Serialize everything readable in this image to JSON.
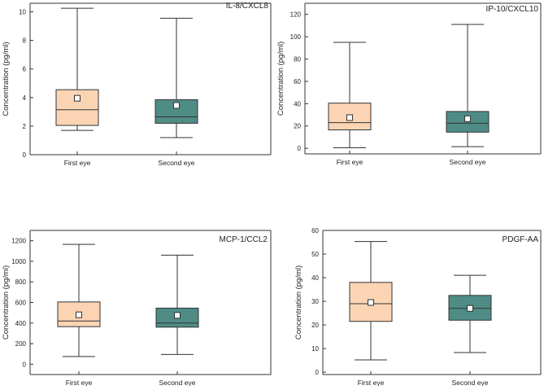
{
  "chart_data": [
    {
      "type": "box",
      "title": "IL-8/CXCL8",
      "ylabel": "Concentration (pg/ml)",
      "xlabel": "",
      "ylim": [
        0,
        10.6
      ],
      "yticks": [
        0,
        2,
        4,
        6,
        8,
        10
      ],
      "categories": [
        "First eye",
        "Second eye"
      ],
      "boxes": [
        {
          "min": 1.7,
          "q1": 2.05,
          "median": 3.15,
          "q3": 4.55,
          "max": 10.25,
          "mean": 3.95,
          "color": "#fbd4b4"
        },
        {
          "min": 1.2,
          "q1": 2.2,
          "median": 2.65,
          "q3": 3.85,
          "max": 9.55,
          "mean": 3.45,
          "color": "#4f8c86"
        }
      ]
    },
    {
      "type": "box",
      "title": "IP-10/CXCL10",
      "ylabel": "Concentration (pg/ml)",
      "xlabel": "",
      "ylim": [
        -5,
        130
      ],
      "yticks": [
        0,
        20,
        40,
        60,
        80,
        100,
        120
      ],
      "categories": [
        "First eye",
        "Second eye"
      ],
      "boxes": [
        {
          "min": 0.5,
          "q1": 16.5,
          "median": 23,
          "q3": 40.5,
          "max": 95,
          "mean": 27.5,
          "color": "#fbd4b4"
        },
        {
          "min": 1.5,
          "q1": 14.5,
          "median": 22.5,
          "q3": 33,
          "max": 111,
          "mean": 26.5,
          "color": "#4f8c86"
        }
      ]
    },
    {
      "type": "box",
      "title": "MCP-1/CCL2",
      "ylabel": "Concentration (pg/ml)",
      "xlabel": "",
      "ylim": [
        -100,
        1300
      ],
      "yticks": [
        0,
        200,
        400,
        600,
        800,
        1000,
        1200
      ],
      "categories": [
        "First eye",
        "Second eye"
      ],
      "boxes": [
        {
          "min": 75,
          "q1": 365,
          "median": 420,
          "q3": 605,
          "max": 1165,
          "mean": 480,
          "color": "#fbd4b4"
        },
        {
          "min": 95,
          "q1": 360,
          "median": 400,
          "q3": 545,
          "max": 1060,
          "mean": 475,
          "color": "#4f8c86"
        }
      ]
    },
    {
      "type": "box",
      "title": "PDGF-AA",
      "ylabel": "Concentration (pg/ml)",
      "xlabel": "",
      "ylim": [
        -1,
        60
      ],
      "yticks": [
        0,
        10,
        20,
        30,
        40,
        50,
        60
      ],
      "categories": [
        "First eye",
        "Second eye"
      ],
      "boxes": [
        {
          "min": 5.2,
          "q1": 21.5,
          "median": 29,
          "q3": 38,
          "max": 55.3,
          "mean": 29.5,
          "color": "#fbd4b4"
        },
        {
          "min": 8.3,
          "q1": 22,
          "median": 27,
          "q3": 32.5,
          "max": 41,
          "mean": 27,
          "color": "#4f8c86"
        }
      ]
    }
  ]
}
